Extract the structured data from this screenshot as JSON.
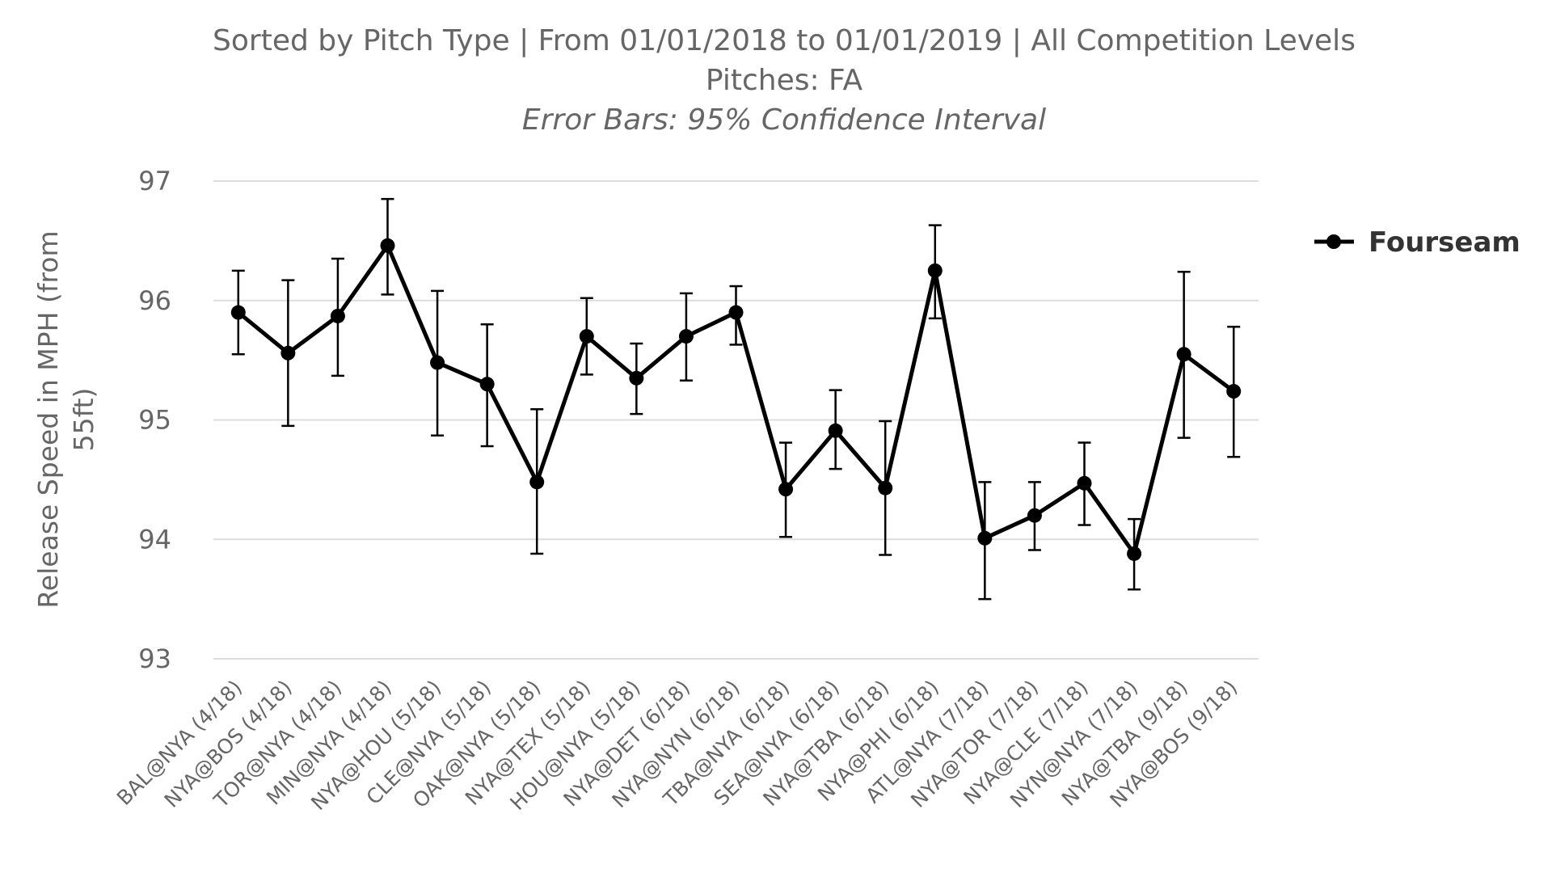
{
  "chart_data": {
    "type": "line",
    "title_line1": "Sorted by Pitch Type | From 01/01/2018 to 01/01/2019 | All Competition Levels",
    "title_line2": "Pitches: FA",
    "subtitle": "Error Bars: 95% Confidence Interval",
    "ylabel_line1": "Release Speed in MPH (from",
    "ylabel_line2": "55ft)",
    "xlabel": "",
    "ylim": [
      93,
      97
    ],
    "yticks": [
      "93",
      "94",
      "95",
      "96",
      "97"
    ],
    "grid": true,
    "legend_position": "right",
    "categories": [
      "BAL@NYA (4/18)",
      "NYA@BOS (4/18)",
      "TOR@NYA (4/18)",
      "MIN@NYA (4/18)",
      "NYA@HOU (5/18)",
      "CLE@NYA (5/18)",
      "OAK@NYA (5/18)",
      "NYA@TEX (5/18)",
      "HOU@NYA (5/18)",
      "NYA@DET (6/18)",
      "NYA@NYN (6/18)",
      "TBA@NYA (6/18)",
      "SEA@NYA (6/18)",
      "NYA@TBA (6/18)",
      "NYA@PHI (6/18)",
      "ATL@NYA (7/18)",
      "NYA@TOR (7/18)",
      "NYA@CLE (7/18)",
      "NYN@NYA (7/18)",
      "NYA@TBA (9/18)",
      "NYA@BOS (9/18)"
    ],
    "series": [
      {
        "name": "Fourseam",
        "color": "#000000",
        "values": [
          95.9,
          95.56,
          95.87,
          96.46,
          95.48,
          95.3,
          94.48,
          95.7,
          95.35,
          95.7,
          95.9,
          94.42,
          94.91,
          94.43,
          96.25,
          94.01,
          94.2,
          94.47,
          93.88,
          95.55,
          95.24
        ],
        "err_low": [
          95.55,
          94.95,
          95.37,
          96.05,
          94.87,
          94.78,
          93.88,
          95.38,
          95.05,
          95.33,
          95.63,
          94.02,
          94.59,
          93.87,
          95.85,
          93.5,
          93.91,
          94.12,
          93.58,
          94.85,
          94.69
        ],
        "err_high": [
          96.25,
          96.17,
          96.35,
          96.85,
          96.08,
          95.8,
          95.09,
          96.02,
          95.64,
          96.06,
          96.12,
          94.81,
          95.25,
          94.99,
          96.63,
          94.48,
          94.48,
          94.81,
          94.17,
          96.24,
          95.78
        ]
      }
    ]
  }
}
